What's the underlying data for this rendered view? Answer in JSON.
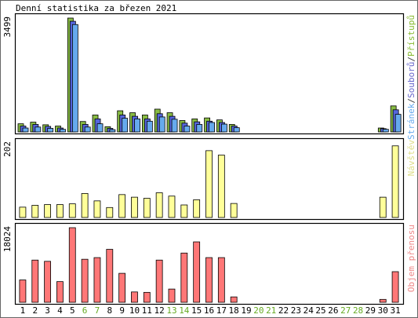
{
  "chart_data": {
    "type": "bar",
    "title": "Denní statistika za březen 2021",
    "categories": [
      "1",
      "2",
      "3",
      "4",
      "5",
      "6",
      "7",
      "8",
      "9",
      "10",
      "11",
      "12",
      "13",
      "14",
      "15",
      "16",
      "17",
      "18",
      "19",
      "20",
      "21",
      "22",
      "23",
      "24",
      "25",
      "26",
      "27",
      "28",
      "29",
      "30",
      "31"
    ],
    "weekend_days": [
      "6",
      "7",
      "13",
      "14",
      "20",
      "21",
      "27",
      "28"
    ],
    "panels": [
      {
        "ymax_label": "3499",
        "ymax": 3499,
        "legend": [
          {
            "text": "Stránek",
            "color": "#66aaee"
          },
          {
            "text": "/",
            "color": "#444444"
          },
          {
            "text": "Souborů",
            "color": "#6666cc"
          },
          {
            "text": "/",
            "color": "#444444"
          },
          {
            "text": "Přístupů",
            "color": "#88bb33"
          }
        ],
        "series": [
          {
            "name": "Přístupů",
            "color": "#88bb44",
            "values": [
              250,
              300,
              220,
              180,
              3499,
              320,
              520,
              160,
              650,
              590,
              520,
              700,
              590,
              350,
              400,
              430,
              370,
              230,
              0,
              0,
              0,
              0,
              0,
              0,
              0,
              0,
              0,
              0,
              0,
              120,
              800
            ]
          },
          {
            "name": "Souborů",
            "color": "#5566dd",
            "values": [
              180,
              230,
              170,
              120,
              3400,
              230,
              400,
              110,
              520,
              480,
              400,
              560,
              480,
              270,
              310,
              330,
              290,
              180,
              0,
              0,
              0,
              0,
              0,
              0,
              0,
              0,
              0,
              0,
              0,
              100,
              680
            ]
          },
          {
            "name": "Stránek",
            "color": "#66aaee",
            "values": [
              120,
              150,
              110,
              80,
              3300,
              150,
              250,
              70,
              420,
              400,
              330,
              460,
              390,
              180,
              230,
              290,
              240,
              130,
              0,
              0,
              0,
              0,
              0,
              0,
              0,
              0,
              0,
              0,
              0,
              80,
              540
            ]
          }
        ]
      },
      {
        "ymax_label": "202",
        "ymax": 202,
        "legend": [
          {
            "text": "Návštěv",
            "color": "#dddd88"
          }
        ],
        "series": [
          {
            "name": "Návštěv",
            "color": "#ffff99",
            "values": [
              28,
              33,
              35,
              35,
              37,
              65,
              45,
              27,
              62,
              55,
              52,
              67,
              58,
              34,
              48,
              181,
              169,
              38,
              0,
              0,
              0,
              0,
              0,
              0,
              0,
              0,
              0,
              0,
              0,
              55,
              194
            ]
          }
        ]
      },
      {
        "ymax_label": "18024",
        "ymax": 18024,
        "legend": [
          {
            "text": "Objem přenosu",
            "color": "#ee8888"
          }
        ],
        "series": [
          {
            "name": "Objem přenosu",
            "color": "#ff7777",
            "values": [
              5400,
              10200,
              9900,
              5000,
              18024,
              10400,
              10800,
              12800,
              7000,
              2500,
              2400,
              10200,
              3200,
              11900,
              14600,
              10800,
              10800,
              1300,
              0,
              0,
              0,
              0,
              0,
              0,
              0,
              0,
              0,
              0,
              0,
              700,
              7400
            ]
          }
        ]
      }
    ]
  }
}
